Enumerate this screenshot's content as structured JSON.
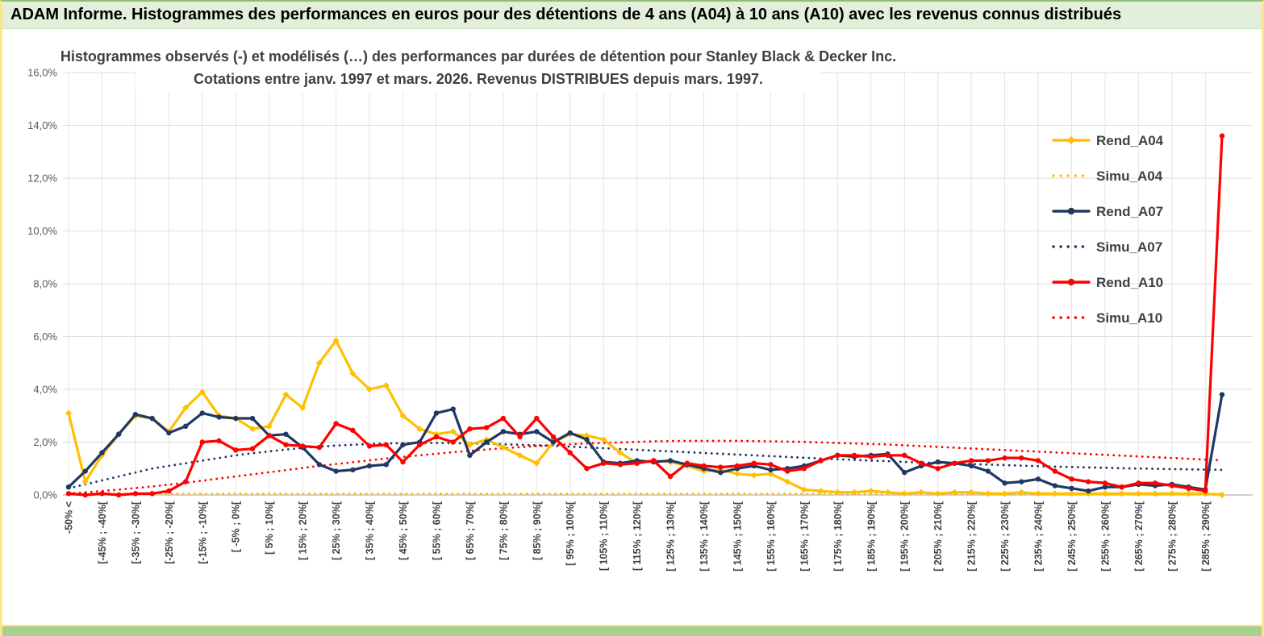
{
  "banner": {
    "title": "ADAM Informe. Histogrammes des performances en euros pour des détentions de 4 ans (A04) à 10 ans (A10) avec les revenus connus distribués"
  },
  "chart_data": {
    "type": "line",
    "title": "Histogrammes observés (-) et modélisés (…) des performances par durées de détention pour Stanley Black & Decker Inc.",
    "subtitle": "Cotations entre janv. 1997 et mars. 2026.  Revenus DISTRIBUES depuis mars. 1997.",
    "ylim": [
      0,
      16
    ],
    "y_tick_step": 2,
    "y_tick_labels": [
      "0,0%",
      "2,0%",
      "4,0%",
      "6,0%",
      "8,0%",
      "10,0%",
      "12,0%",
      "14,0%",
      "16,0%"
    ],
    "grid": true,
    "legend_position": "right",
    "n_points": 70,
    "x_bin_width_pct": 5,
    "x_labels_every_other_bin": true,
    "x_labels": [
      "-50% <",
      "[-45% ; -40%[",
      "[-35% ; -30%[",
      "[-25% ; -20%[",
      "[-15% ; -10%[",
      "[ -5% ; 0%[",
      "[ 5% ; 10%[",
      "[ 15% ; 20%[",
      "[ 25% ; 30%[",
      "[ 35% ; 40%[",
      "[ 45% ; 50%[",
      "[ 55% ; 60%[",
      "[ 65% ; 70%[",
      "[ 75% ; 80%[",
      "[ 85% ; 90%[",
      "[ 95% ; 100%[",
      "[ 105% ; 110%[",
      "[ 115% ; 120%[",
      "[ 125% ; 130%[",
      "[ 135% ; 140%[",
      "[ 145% ; 150%[",
      "[ 155% ; 160%[",
      "[ 165% ; 170%[",
      "[ 175% ; 180%[",
      "[ 185% ; 190%[",
      "[ 195% ; 200%[",
      "[ 205% ; 210%[",
      "[ 215% ; 220%[",
      "[ 225% ; 230%[",
      "[ 235% ; 240%[",
      "[ 245% ; 250%[",
      "[ 255% ; 260%[",
      "[ 265% ; 270%[",
      "[ 275% ; 280%[",
      "[ 285% ; 290%["
    ],
    "series": [
      {
        "name": "Rend_A04",
        "color": "#FFC000",
        "line": "solid",
        "marker": "diamond",
        "values": [
          3.1,
          0.5,
          1.5,
          2.3,
          3.0,
          2.9,
          2.4,
          3.3,
          3.9,
          3.0,
          2.9,
          2.5,
          2.6,
          3.8,
          3.3,
          5.0,
          5.85,
          4.6,
          4.0,
          4.15,
          3.0,
          2.5,
          2.3,
          2.4,
          1.9,
          2.1,
          1.8,
          1.5,
          1.2,
          2.0,
          2.3,
          2.25,
          2.1,
          1.6,
          1.2,
          1.3,
          1.25,
          1.1,
          0.9,
          0.95,
          0.8,
          0.75,
          0.8,
          0.5,
          0.2,
          0.15,
          0.1,
          0.1,
          0.15,
          0.1,
          0.05,
          0.1,
          0.05,
          0.1,
          0.1,
          0.05,
          0.05,
          0.1,
          0.05,
          0.05,
          0.05,
          0.05,
          0.05,
          0.05,
          0.05,
          0.05,
          0.05,
          0.05,
          0.05,
          0.0
        ]
      },
      {
        "name": "Simu_A04",
        "color": "#FFC000",
        "line": "dotted",
        "marker": "none",
        "values": [
          0.05,
          0.05,
          0.05,
          0.05,
          0.05,
          0.05,
          0.05,
          0.05,
          0.05,
          0.05,
          0.05,
          0.05,
          0.05,
          0.05,
          0.05,
          0.05,
          0.05,
          0.05,
          0.05,
          0.05,
          0.05,
          0.05,
          0.05,
          0.05,
          0.05,
          0.05,
          0.05,
          0.05,
          0.05,
          0.05,
          0.05,
          0.05,
          0.05,
          0.05,
          0.05,
          0.05,
          0.05,
          0.05,
          0.05,
          0.05,
          0.05,
          0.05,
          0.05,
          0.05,
          0.05,
          0.05,
          0.05,
          0.05,
          0.05,
          0.05,
          0.05,
          0.05,
          0.05,
          0.05,
          0.05,
          0.05,
          0.05,
          0.05,
          0.05,
          0.05,
          0.05,
          0.05,
          0.05,
          0.05,
          0.05,
          0.05,
          0.05,
          0.05,
          0.05,
          0.05
        ]
      },
      {
        "name": "Rend_A07",
        "color": "#1F3864",
        "line": "solid",
        "marker": "circle",
        "values": [
          0.3,
          0.9,
          1.6,
          2.3,
          3.05,
          2.9,
          2.35,
          2.6,
          3.1,
          2.95,
          2.9,
          2.9,
          2.25,
          2.3,
          1.8,
          1.15,
          0.9,
          0.95,
          1.1,
          1.15,
          1.9,
          2.0,
          3.1,
          3.25,
          1.5,
          2.0,
          2.4,
          2.3,
          2.4,
          2.0,
          2.35,
          2.1,
          1.25,
          1.2,
          1.3,
          1.25,
          1.3,
          1.15,
          1.0,
          0.85,
          1.0,
          1.1,
          0.95,
          1.0,
          1.1,
          1.3,
          1.5,
          1.45,
          1.5,
          1.55,
          0.85,
          1.1,
          1.25,
          1.2,
          1.1,
          0.9,
          0.45,
          0.5,
          0.6,
          0.35,
          0.25,
          0.15,
          0.3,
          0.3,
          0.4,
          0.35,
          0.4,
          0.3,
          0.2,
          3.8
        ]
      },
      {
        "name": "Simu_A07",
        "color": "#1F3864",
        "line": "dotted",
        "marker": "none",
        "values": [
          0.25,
          0.4,
          0.55,
          0.7,
          0.85,
          1.0,
          1.1,
          1.2,
          1.3,
          1.4,
          1.5,
          1.58,
          1.65,
          1.72,
          1.78,
          1.83,
          1.87,
          1.9,
          1.93,
          1.95,
          1.96,
          1.97,
          1.97,
          1.96,
          1.95,
          1.94,
          1.92,
          1.9,
          1.88,
          1.86,
          1.83,
          1.8,
          1.77,
          1.74,
          1.71,
          1.68,
          1.65,
          1.62,
          1.59,
          1.56,
          1.53,
          1.5,
          1.47,
          1.44,
          1.41,
          1.38,
          1.35,
          1.33,
          1.3,
          1.28,
          1.25,
          1.23,
          1.21,
          1.19,
          1.17,
          1.15,
          1.13,
          1.11,
          1.09,
          1.07,
          1.06,
          1.04,
          1.03,
          1.01,
          1.0,
          0.99,
          0.98,
          0.97,
          0.96,
          0.95
        ]
      },
      {
        "name": "Rend_A10",
        "color": "#FF0000",
        "line": "solid",
        "marker": "circle",
        "values": [
          0.05,
          0.0,
          0.05,
          0.0,
          0.05,
          0.05,
          0.15,
          0.5,
          2.0,
          2.05,
          1.7,
          1.75,
          2.25,
          1.9,
          1.85,
          1.8,
          2.7,
          2.45,
          1.85,
          1.9,
          1.25,
          1.9,
          2.2,
          2.0,
          2.5,
          2.55,
          2.9,
          2.2,
          2.9,
          2.2,
          1.6,
          1.0,
          1.2,
          1.15,
          1.2,
          1.3,
          0.7,
          1.2,
          1.1,
          1.05,
          1.1,
          1.2,
          1.15,
          0.9,
          1.0,
          1.3,
          1.5,
          1.5,
          1.45,
          1.5,
          1.5,
          1.2,
          1.0,
          1.2,
          1.3,
          1.3,
          1.4,
          1.4,
          1.3,
          0.9,
          0.6,
          0.5,
          0.45,
          0.3,
          0.45,
          0.45,
          0.35,
          0.25,
          0.15,
          13.6
        ]
      },
      {
        "name": "Simu_A10",
        "color": "#FF0000",
        "line": "dotted",
        "marker": "none",
        "values": [
          0.05,
          0.1,
          0.15,
          0.2,
          0.26,
          0.32,
          0.39,
          0.46,
          0.54,
          0.62,
          0.7,
          0.78,
          0.86,
          0.94,
          1.02,
          1.1,
          1.17,
          1.24,
          1.31,
          1.38,
          1.44,
          1.5,
          1.56,
          1.62,
          1.67,
          1.72,
          1.77,
          1.81,
          1.85,
          1.89,
          1.92,
          1.95,
          1.97,
          1.99,
          2.01,
          2.03,
          2.04,
          2.05,
          2.05,
          2.05,
          2.05,
          2.04,
          2.03,
          2.02,
          2.01,
          1.99,
          1.97,
          1.95,
          1.93,
          1.91,
          1.88,
          1.85,
          1.82,
          1.79,
          1.76,
          1.73,
          1.7,
          1.67,
          1.64,
          1.61,
          1.58,
          1.55,
          1.52,
          1.49,
          1.46,
          1.43,
          1.4,
          1.37,
          1.34,
          1.31
        ]
      }
    ],
    "legend_entries": [
      "Rend_A04",
      "Simu_A04",
      "Rend_A07",
      "Simu_A07",
      "Rend_A10",
      "Simu_A10"
    ]
  }
}
